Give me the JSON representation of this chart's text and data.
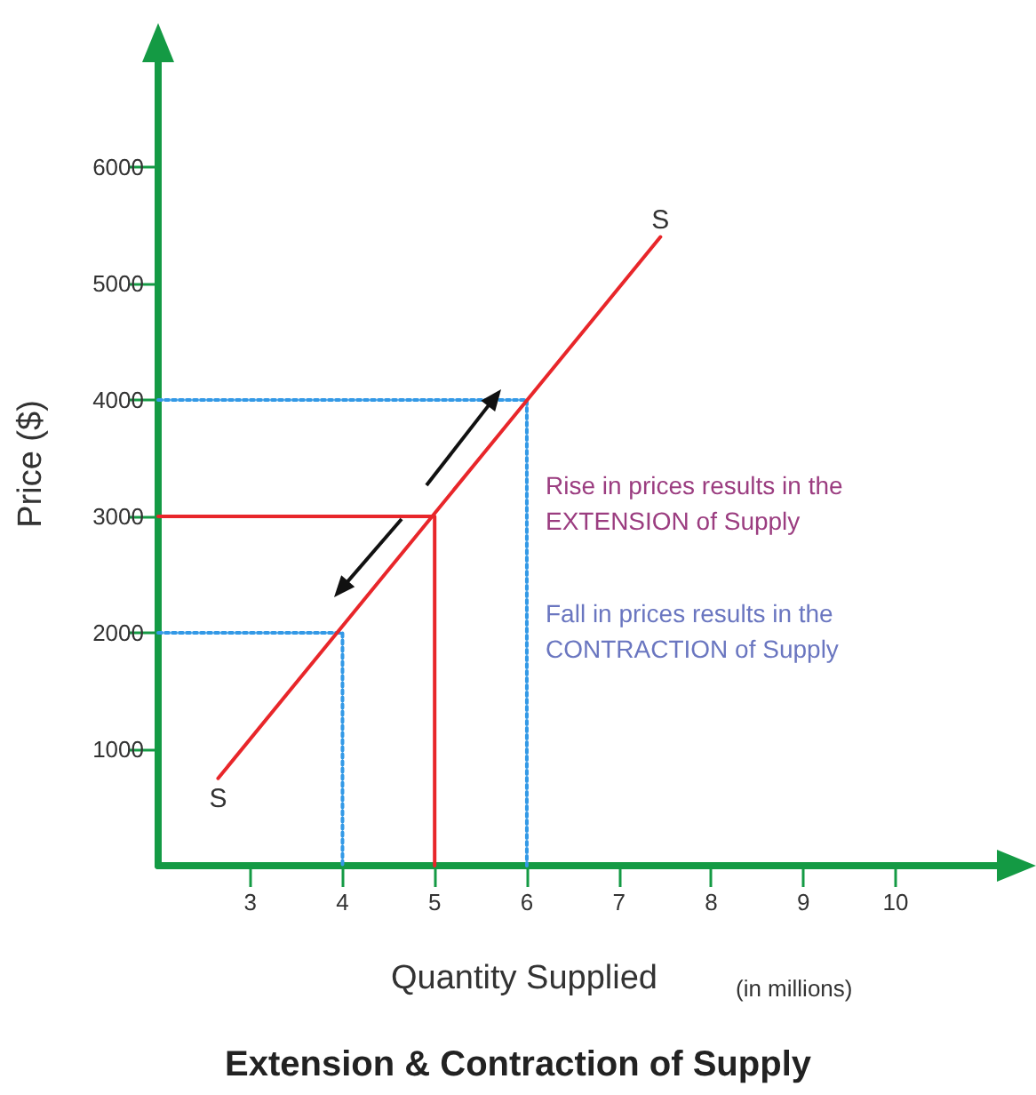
{
  "chart_data": {
    "type": "line",
    "title": "Extension & Contraction of Supply",
    "xlabel": "Quantity Supplied",
    "ylabel": "Price ($)",
    "annotations": [
      "Rise in prices results in the\nEXTENSION of Supply",
      "Fall in prices results in the\nCONTRACTION of Supply",
      "(in millions)"
    ],
    "series": [
      {
        "name": "S",
        "color": "#e8262a",
        "x": [
          2.65,
          7.45
        ],
        "values": [
          750,
          5400
        ],
        "line_style": "solid"
      },
      {
        "color": "#e8262a",
        "x": [
          2,
          5,
          5
        ],
        "values": [
          3000,
          3000,
          0
        ],
        "line_style": "solid"
      },
      {
        "color": "#3399e6",
        "x": [
          2,
          6,
          6
        ],
        "values": [
          4000,
          4000,
          0
        ],
        "line_style": "dotted"
      },
      {
        "color": "#3399e6",
        "x": [
          2,
          4,
          4
        ],
        "values": [
          2000,
          2000,
          0
        ],
        "line_style": "dotted"
      }
    ],
    "xlim": [
      2,
      11.1
    ],
    "xticks": [
      3,
      4,
      5,
      6,
      7,
      8,
      9,
      10
    ],
    "ylim": [
      0,
      6900
    ],
    "yticks": [
      1000,
      2000,
      3000,
      4000,
      5000,
      6000
    ],
    "grid": false,
    "legend": false,
    "marker": "none"
  }
}
